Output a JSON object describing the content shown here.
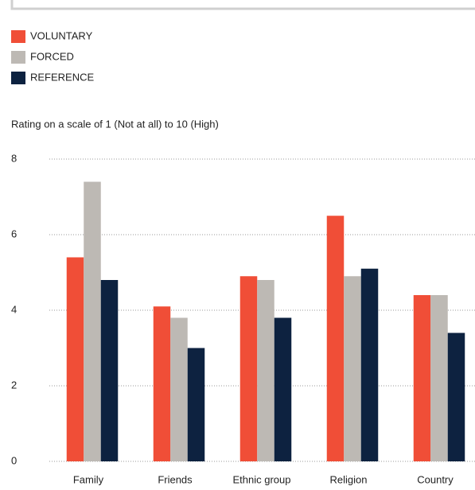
{
  "chart_data": {
    "type": "bar",
    "subtitle": "Rating on a scale of 1 (Not at all) to 10 (High)",
    "categories": [
      "Family",
      "Friends",
      "Ethnic group",
      "Religion",
      "Country"
    ],
    "series": [
      {
        "name": "VOLUNTARY",
        "color": "#f04e37",
        "values": [
          5.4,
          4.1,
          4.9,
          6.5,
          4.4
        ]
      },
      {
        "name": "FORCED",
        "color": "#bdb9b4",
        "values": [
          7.4,
          3.8,
          4.8,
          4.9,
          4.4
        ]
      },
      {
        "name": "REFERENCE",
        "color": "#0d2240",
        "values": [
          4.8,
          3.0,
          3.8,
          5.1,
          3.4
        ]
      }
    ],
    "ylim": [
      0,
      8
    ],
    "yticks": [
      0,
      2,
      4,
      6,
      8
    ],
    "grid": true
  }
}
